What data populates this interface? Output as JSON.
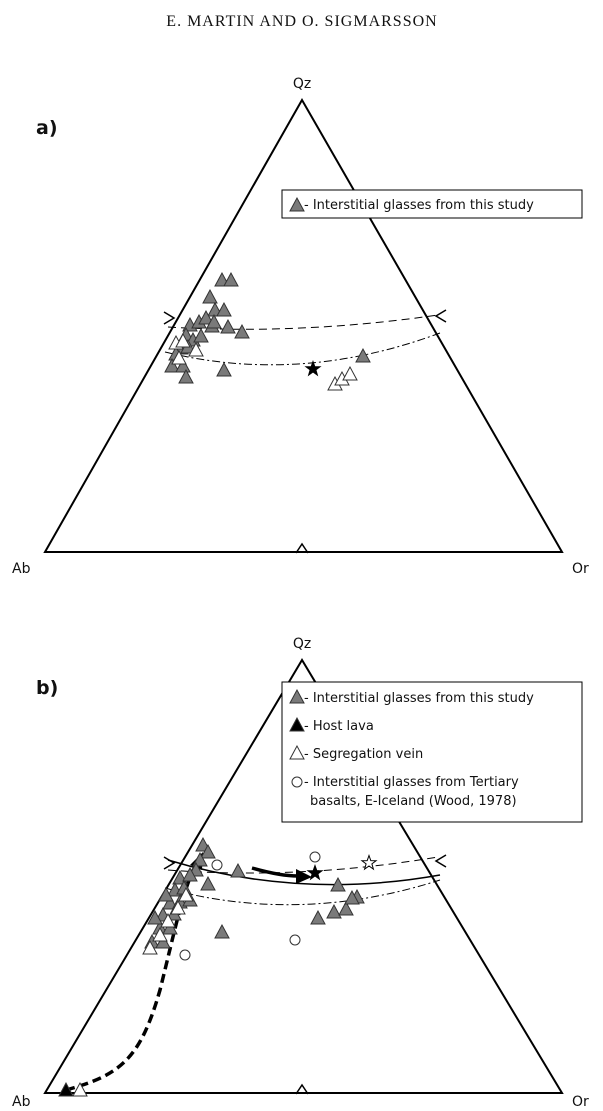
{
  "header": "E. MARTIN AND O. SIGMARSSON",
  "panels": [
    {
      "label": "a)",
      "apex": "Qz",
      "left": "Ab",
      "right": "Or",
      "legend": [
        "- Interstitial glasses from this study"
      ]
    },
    {
      "label": "b)",
      "apex": "Qz",
      "left": "Ab",
      "right": "Or",
      "legend": [
        "- Interstitial glasses from this study",
        "- Host lava",
        "- Segregation vein",
        "- Interstitial glasses from Tertiary",
        "basalts, E-Iceland (Wood, 1978)"
      ]
    }
  ]
}
